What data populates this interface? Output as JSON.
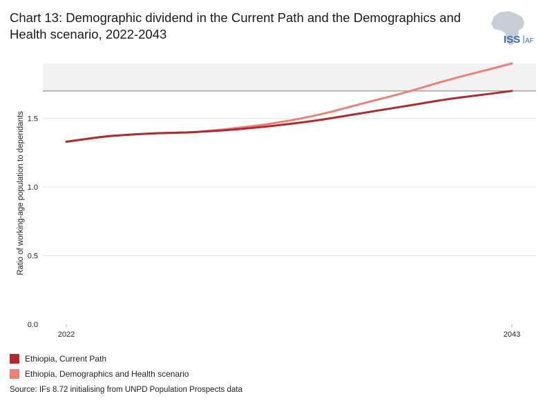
{
  "header": {
    "title": "Chart 13: Demographic dividend in the Current Path and the Demographics and Health scenario, 2022-2043"
  },
  "logo": {
    "text_main": "ISS",
    "text_sub": "AFI"
  },
  "colors": {
    "current_path": "#b5282e",
    "dh_scenario": "#ee8078",
    "band": "#f2f2f2",
    "reference_line": "#9e9e9e",
    "grid": "#e4e4e4"
  },
  "chart_data": {
    "type": "line",
    "title": "Chart 13: Demographic dividend in the Current Path and the Demographics and Health scenario, 2022-2043",
    "xlabel": "",
    "ylabel": "Ratio of working-age population to dependants",
    "ylim": [
      0,
      1.9
    ],
    "yticks": [
      "0.0",
      "0.5",
      "1.0",
      "1.5"
    ],
    "xticks": [
      "2022",
      "2043"
    ],
    "x": [
      2022,
      2024,
      2026,
      2028,
      2030,
      2032,
      2034,
      2036,
      2038,
      2040,
      2042,
      2043
    ],
    "reference_line": 1.7,
    "band": [
      1.7,
      1.9
    ],
    "grid": true,
    "legend_position": "bottom-left",
    "series": [
      {
        "name": "Ethiopia, Current Path",
        "values": [
          1.33,
          1.37,
          1.39,
          1.4,
          1.42,
          1.45,
          1.49,
          1.54,
          1.59,
          1.64,
          1.68,
          1.7
        ]
      },
      {
        "name": "Ethiopia, Demographics and Health scenario",
        "values": [
          1.33,
          1.37,
          1.39,
          1.4,
          1.43,
          1.47,
          1.53,
          1.61,
          1.69,
          1.78,
          1.86,
          1.9
        ]
      }
    ]
  },
  "legend": {
    "items": [
      "Ethiopia, Current Path",
      "Ethiopia, Demographics and Health scenario"
    ]
  },
  "source": "Source: IFs 8.72 initialising from UNPD Population Prospects data"
}
